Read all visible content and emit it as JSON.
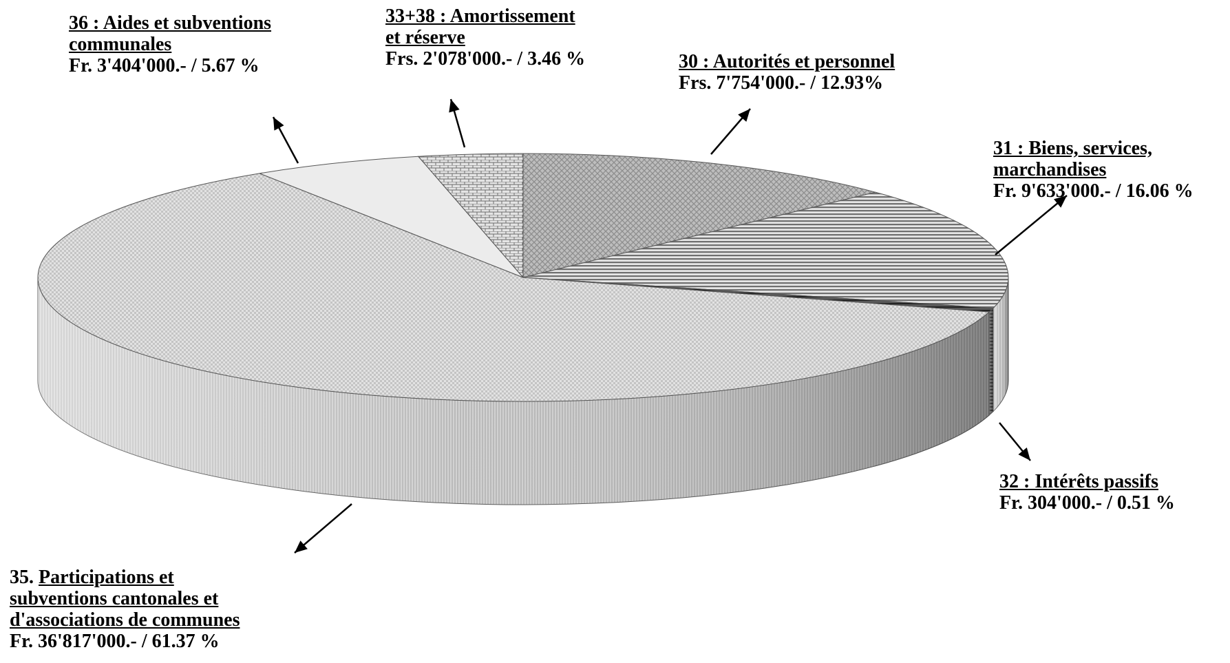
{
  "chart_data": {
    "type": "pie",
    "style": "3d-exploded-none",
    "title": "",
    "slices": [
      {
        "code": "30 :",
        "name": "Autorités et personnel",
        "amount": "Frs.  7'754'000.- / 12.93%",
        "value": 7754000,
        "percent": 12.93,
        "pattern": "crosshatch-medium"
      },
      {
        "code": "31 :",
        "name": "Biens, services, marchandises",
        "amount": "Fr. 9'633'000.- / 16.06 %",
        "value": 9633000,
        "percent": 16.06,
        "pattern": "horizontal-stripes"
      },
      {
        "code": "32 :",
        "name": "Intérêts passifs",
        "amount": "Fr. 304'000.- / 0.51 %",
        "value": 304000,
        "percent": 0.51,
        "pattern": "dark-stripes"
      },
      {
        "code": "35.",
        "name": "Participations et subventions cantonales et d'associations de communes",
        "amount": "Fr.  36'817'000.- / 61.37 %",
        "value": 36817000,
        "percent": 61.37,
        "pattern": "fine-checker"
      },
      {
        "code": "36 :",
        "name": "Aides et subventions communales",
        "amount": "Fr. 3'404'000.- /  5.67 %",
        "value": 3404000,
        "percent": 5.67,
        "pattern": "light-plain"
      },
      {
        "code": "33+38 :",
        "name": "Amortissement et réserve",
        "amount": "Frs. 2'078'000.- / 3.46 %",
        "value": 2078000,
        "percent": 3.46,
        "pattern": "brick"
      }
    ]
  },
  "labels": {
    "s30": {
      "line1": "30 : Autorités et personnel",
      "line2": "Frs.  7'754'000.- / 12.93%"
    },
    "s31": {
      "line1": "31 : Biens, services,",
      "line2": "marchandises",
      "line3": "Fr. 9'633'000.- / 16.06 %"
    },
    "s32": {
      "line1": "32 : Intérêts passifs",
      "line2": "Fr. 304'000.- / 0.51 %"
    },
    "s35": {
      "prefix": "35. ",
      "line1": "Participations et",
      "line2": "subventions cantonales et",
      "line3": "d'associations de communes",
      "line4": "Fr.  36'817'000.- / 61.37 %"
    },
    "s36": {
      "line1": "36 : Aides et subventions",
      "line2": "communales",
      "line3": "Fr. 3'404'000.- /  5.67 %"
    },
    "s3338": {
      "line1": "33+38 : Amortissement",
      "line2": "et réserve",
      "line3": "Frs. 2'078'000.- / 3.46 %"
    }
  },
  "colors": {
    "text": "#000000",
    "arrow": "#000000",
    "outline": "#555555"
  }
}
